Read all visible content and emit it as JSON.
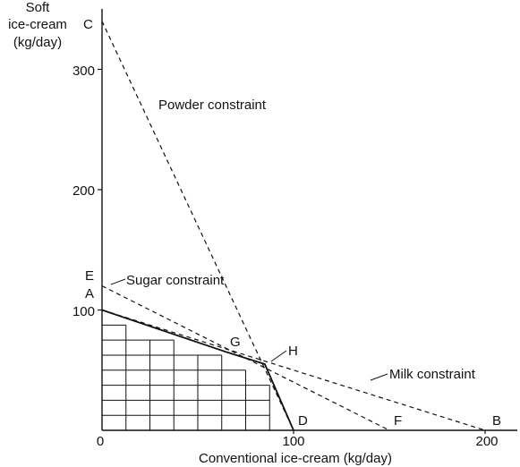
{
  "figure": {
    "y_axis_label_lines": [
      "Soft",
      "ice-cream",
      "(kg/day)"
    ],
    "x_axis_label": "Conventional ice-cream (kg/day)",
    "x_ticks": [
      {
        "value": 0,
        "label": "0"
      },
      {
        "value": 100,
        "label": "100"
      },
      {
        "value": 200,
        "label": "200"
      }
    ],
    "y_ticks": [
      {
        "value": 100,
        "label": "100"
      },
      {
        "value": 200,
        "label": "200"
      },
      {
        "value": 300,
        "label": "300"
      }
    ],
    "points": {
      "C": {
        "label": "C",
        "x": 0,
        "y": 340
      },
      "E": {
        "label": "E",
        "x": 0,
        "y": 120
      },
      "A": {
        "label": "A",
        "x": 0,
        "y": 100
      },
      "G": {
        "label": "G",
        "x": 65,
        "y": 65
      },
      "H": {
        "label": "H",
        "x": 85,
        "y": 55
      },
      "D": {
        "label": "D",
        "x": 100,
        "y": 0
      },
      "F": {
        "label": "F",
        "x": 150,
        "y": 0
      },
      "B": {
        "label": "B",
        "x": 200,
        "y": 0
      }
    },
    "constraints": [
      {
        "key": "powder",
        "label": "Powder constraint",
        "from": "C",
        "to": "D"
      },
      {
        "key": "sugar",
        "label": "Sugar constraint",
        "from": "E",
        "to": "F"
      },
      {
        "key": "milk",
        "label": "Milk constraint",
        "from": "A",
        "to": "B"
      }
    ],
    "feasible_region_boundary": [
      "A",
      "G",
      "H",
      "D"
    ],
    "grid_step": 12.5,
    "line_color": "#111111"
  }
}
